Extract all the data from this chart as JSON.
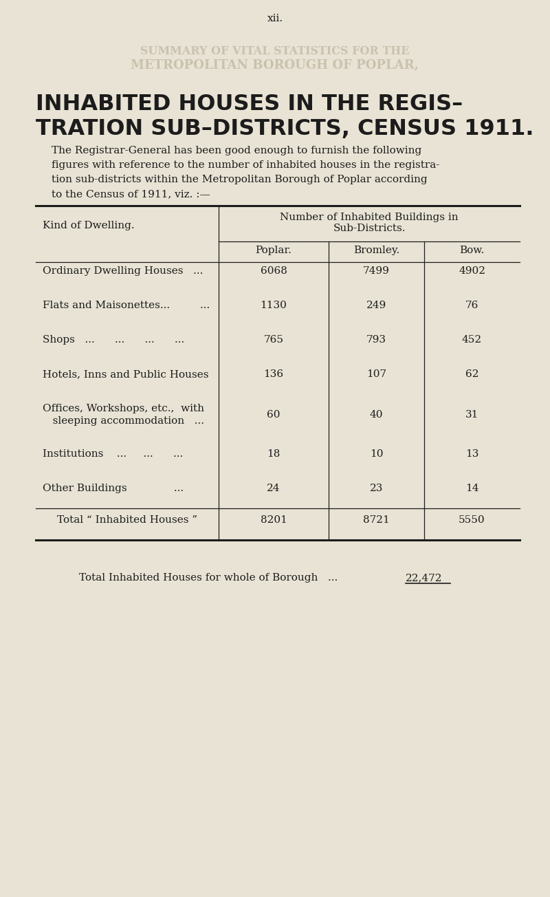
{
  "page_number": "xii.",
  "watermark_line1": "SUMMARY OF VITAL STATISTICS FOR THE",
  "watermark_line2": "METROPOLITAN BOROUGH OF POPLAR,",
  "title_line1": "INHABITED HOUSES IN THE REGIS–",
  "title_line2": "TRATION SUB–DISTRICTS, CENSUS 1911.",
  "intro_lines": [
    "The Registrar-General has been good enough to furnish the following",
    "figures with reference to the number of inhabited houses in the registra-",
    "tion sub-districts within the Metropolitan Borough of Poplar according",
    "to the Census of 1911, viz. :—"
  ],
  "col_header_main1": "Number of Inhabited Buildings in",
  "col_header_main2": "Sub-Districts.",
  "col_header_left": "Kind of Dwelling.",
  "col_headers": [
    "Poplar.",
    "Bromley.",
    "Bow."
  ],
  "rows": [
    {
      "label": "Ordinary Dwelling Houses   ...",
      "label2": null,
      "values": [
        "6068",
        "7499",
        "4902"
      ]
    },
    {
      "label": "Flats and Maisonettes...         ...",
      "label2": null,
      "values": [
        "1130",
        "249",
        "76"
      ]
    },
    {
      "label": "Shops   ...      ...      ...      ...",
      "label2": null,
      "values": [
        "765",
        "793",
        "452"
      ]
    },
    {
      "label": "Hotels, Inns and Public Houses",
      "label2": null,
      "values": [
        "136",
        "107",
        "62"
      ]
    },
    {
      "label": "Offices, Workshops, etc.,  with",
      "label2": "   sleeping accommodation   ...",
      "values": [
        "60",
        "40",
        "31"
      ]
    },
    {
      "label": "Institutions    ...     ...      ...",
      "label2": null,
      "values": [
        "18",
        "10",
        "13"
      ]
    },
    {
      "label": "Other Buildings              ...",
      "label2": null,
      "values": [
        "24",
        "23",
        "14"
      ]
    }
  ],
  "total_label": "Total “ Inhabited Houses ”",
  "total_values": [
    "8201",
    "8721",
    "5550"
  ],
  "footer_label": "Total Inhabited Houses for whole of Borough   ...",
  "footer_value": "22,472",
  "bg_color": "#e8e3d4",
  "text_color": "#1c1c1c",
  "watermark_color": "#c5bba8",
  "line_color": "#1c1c1c"
}
